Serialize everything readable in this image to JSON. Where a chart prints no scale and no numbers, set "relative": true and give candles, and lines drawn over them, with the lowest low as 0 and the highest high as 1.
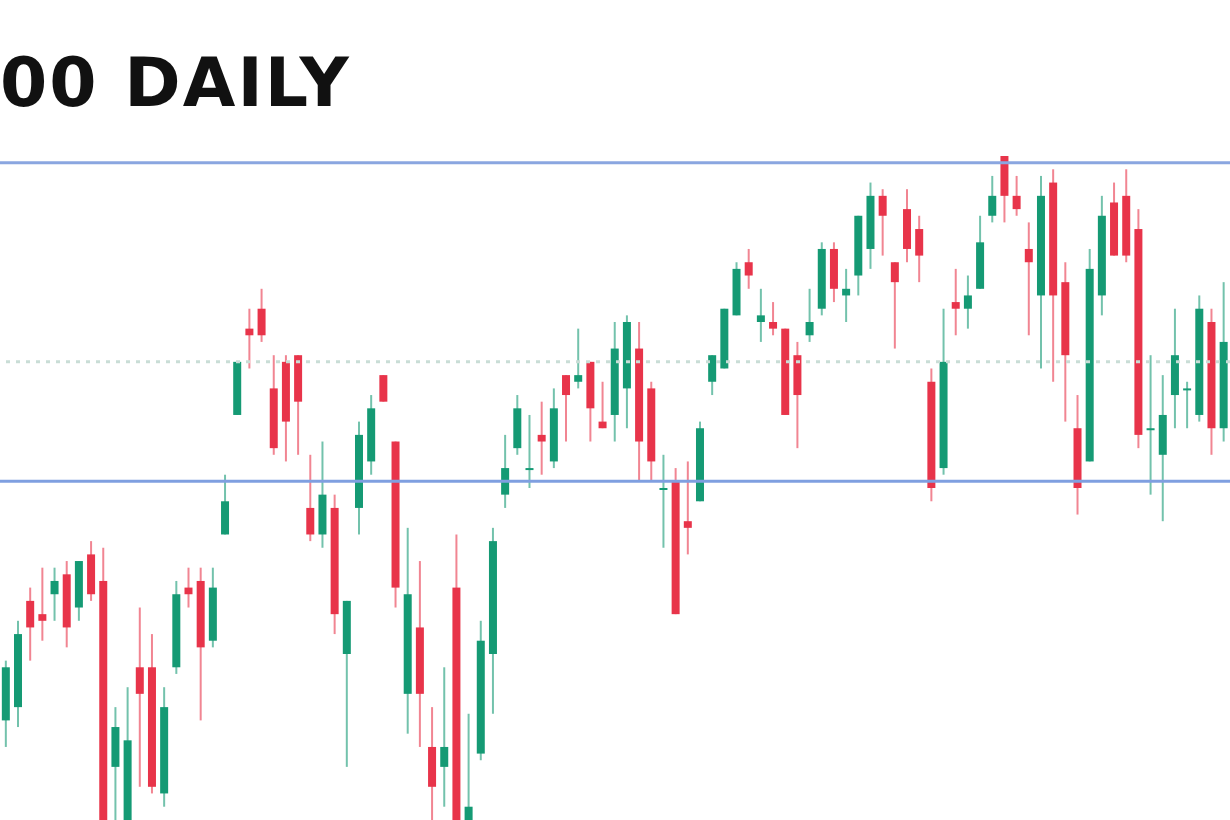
{
  "chart_data": {
    "type": "candlestick",
    "title": "00 DAILY",
    "relative": true,
    "categories": [
      null,
      null,
      null,
      null,
      null,
      null,
      null,
      null,
      null,
      null,
      null,
      null,
      null,
      null,
      null,
      null,
      null,
      null,
      null,
      null,
      null,
      null,
      null,
      null,
      null,
      null,
      null,
      null,
      null,
      null,
      null,
      null,
      null,
      null,
      null,
      null,
      null,
      null,
      null,
      null,
      null,
      null,
      null,
      null,
      null,
      null,
      null,
      null,
      null,
      null,
      null,
      null,
      null,
      null,
      null,
      null,
      null,
      null,
      null,
      null,
      null,
      null,
      null,
      null,
      null,
      null,
      null,
      null,
      null,
      null,
      null,
      null,
      null,
      null,
      null,
      null,
      null,
      null,
      null,
      null,
      null,
      null,
      null,
      null,
      null,
      null,
      null,
      null,
      null,
      null,
      null,
      null,
      null,
      null,
      null,
      null,
      null,
      null,
      null,
      null,
      null
    ],
    "ohlc": [
      [
        0.15,
        0.24,
        0.11,
        0.23
      ],
      [
        0.17,
        0.3,
        0.14,
        0.28
      ],
      [
        0.33,
        0.35,
        0.24,
        0.29
      ],
      [
        0.31,
        0.38,
        0.27,
        0.3
      ],
      [
        0.34,
        0.38,
        0.3,
        0.36
      ],
      [
        0.37,
        0.39,
        0.26,
        0.29
      ],
      [
        0.32,
        0.39,
        0.3,
        0.39
      ],
      [
        0.4,
        0.42,
        0.33,
        0.34
      ],
      [
        0.36,
        0.41,
        0,
        0
      ],
      [
        0.08,
        0.17,
        0,
        0.14
      ],
      [
        0,
        0.2,
        0,
        0.12
      ],
      [
        0.23,
        0.32,
        0.05,
        0.19
      ],
      [
        0.23,
        0.28,
        0.04,
        0.05
      ],
      [
        0.04,
        0.2,
        0.02,
        0.17
      ],
      [
        0.23,
        0.36,
        0.22,
        0.34
      ],
      [
        0.35,
        0.38,
        0.32,
        0.34
      ],
      [
        0.36,
        0.38,
        0.15,
        0.26
      ],
      [
        0.27,
        0.38,
        0.26,
        0.35
      ],
      [
        0.43,
        0.52,
        0.43,
        0.48
      ],
      [
        0.61,
        0.69,
        0.61,
        0.69
      ],
      [
        0.74,
        0.77,
        0.68,
        0.73
      ],
      [
        0.77,
        0.8,
        0.72,
        0.73
      ],
      [
        0.65,
        0.7,
        0.55,
        0.56
      ],
      [
        0.69,
        0.7,
        0.54,
        0.6
      ],
      [
        0.7,
        0.7,
        0.55,
        0.63
      ],
      [
        0.47,
        0.55,
        0.42,
        0.43
      ],
      [
        0.43,
        0.57,
        0.41,
        0.49
      ],
      [
        0.47,
        0.49,
        0.28,
        0.31
      ],
      [
        0.25,
        0.33,
        0.08,
        0.33
      ],
      [
        0.47,
        0.6,
        0.43,
        0.58
      ],
      [
        0.54,
        0.64,
        0.52,
        0.62
      ],
      [
        0.67,
        0.67,
        0.63,
        0.63
      ],
      [
        0.57,
        0.57,
        0.32,
        0.35
      ],
      [
        0.19,
        0.44,
        0.13,
        0.34
      ],
      [
        0.29,
        0.39,
        0.11,
        0.19
      ],
      [
        0.11,
        0.17,
        0,
        0.05
      ],
      [
        0.08,
        0.23,
        0.02,
        0.11
      ],
      [
        0.35,
        0.43,
        0,
        0
      ],
      [
        0,
        0.16,
        0,
        0.02
      ],
      [
        0.1,
        0.3,
        0.09,
        0.27
      ],
      [
        0.25,
        0.44,
        0.16,
        0.42
      ],
      [
        0.49,
        0.58,
        0.47,
        0.53
      ],
      [
        0.56,
        0.64,
        0.55,
        0.62
      ],
      [
        0.53,
        0.61,
        0.5,
        0.53
      ],
      [
        0.58,
        0.63,
        0.52,
        0.57
      ],
      [
        0.54,
        0.65,
        0.53,
        0.62
      ],
      [
        0.67,
        0.67,
        0.57,
        0.64
      ],
      [
        0.66,
        0.74,
        0.65,
        0.67
      ],
      [
        0.69,
        0.69,
        0.57,
        0.62
      ],
      [
        0.6,
        0.66,
        0.59,
        0.59
      ],
      [
        0.61,
        0.75,
        0.57,
        0.71
      ],
      [
        0.65,
        0.76,
        0.59,
        0.75
      ],
      [
        0.71,
        0.75,
        0.51,
        0.57
      ],
      [
        0.65,
        0.66,
        0.51,
        0.54
      ],
      [
        0.5,
        0.55,
        0.41,
        0.5
      ],
      [
        0.51,
        0.53,
        0.31,
        0.31
      ],
      [
        0.45,
        0.54,
        0.4,
        0.44
      ],
      [
        0.48,
        0.6,
        0.48,
        0.59
      ],
      [
        0.66,
        0.7,
        0.64,
        0.7
      ],
      [
        0.68,
        0.77,
        0.68,
        0.77
      ],
      [
        0.76,
        0.84,
        0.76,
        0.83
      ],
      [
        0.84,
        0.86,
        0.8,
        0.82
      ],
      [
        0.75,
        0.8,
        0.72,
        0.76
      ],
      [
        0.75,
        0.78,
        0.73,
        0.74
      ],
      [
        0.74,
        0.74,
        0.61,
        0.61
      ],
      [
        0.7,
        0.72,
        0.56,
        0.64
      ],
      [
        0.73,
        0.8,
        0.72,
        0.75
      ],
      [
        0.77,
        0.87,
        0.76,
        0.86
      ],
      [
        0.86,
        0.87,
        0.78,
        0.8
      ],
      [
        0.79,
        0.83,
        0.75,
        0.8
      ],
      [
        0.82,
        0.91,
        0.79,
        0.91
      ],
      [
        0.86,
        0.96,
        0.83,
        0.94
      ],
      [
        0.94,
        0.95,
        0.85,
        0.91
      ],
      [
        0.84,
        0.84,
        0.71,
        0.81
      ],
      [
        0.92,
        0.95,
        0.84,
        0.86
      ],
      [
        0.89,
        0.91,
        0.81,
        0.85
      ],
      [
        0.66,
        0.68,
        0.48,
        0.5
      ],
      [
        0.53,
        0.77,
        0.52,
        0.69
      ],
      [
        0.78,
        0.83,
        0.73,
        0.77
      ],
      [
        0.77,
        0.82,
        0.74,
        0.79
      ],
      [
        0.8,
        0.91,
        0.8,
        0.87
      ],
      [
        0.91,
        0.97,
        0.9,
        0.94
      ],
      [
        1.0,
        1.0,
        0.9,
        0.94
      ],
      [
        0.94,
        0.97,
        0.91,
        0.92
      ],
      [
        0.86,
        0.9,
        0.73,
        0.84
      ],
      [
        0.79,
        0.97,
        0.68,
        0.94
      ],
      [
        0.96,
        0.98,
        0.66,
        0.79
      ],
      [
        0.81,
        0.84,
        0.6,
        0.7
      ],
      [
        0.59,
        0.64,
        0.46,
        0.5
      ],
      [
        0.54,
        0.86,
        0.54,
        0.83
      ],
      [
        0.79,
        0.94,
        0.76,
        0.91
      ],
      [
        0.93,
        0.96,
        0.85,
        0.85
      ],
      [
        0.94,
        0.98,
        0.84,
        0.85
      ],
      [
        0.89,
        0.92,
        0.56,
        0.58
      ],
      [
        0.59,
        0.7,
        0.49,
        0.59
      ],
      [
        0.55,
        0.67,
        0.45,
        0.61
      ],
      [
        0.64,
        0.77,
        0.59,
        0.7
      ],
      [
        0.65,
        0.66,
        0.59,
        0.65
      ],
      [
        0.61,
        0.79,
        0.6,
        0.77
      ],
      [
        0.75,
        0.77,
        0.55,
        0.59
      ],
      [
        0.59,
        0.81,
        0.57,
        0.72
      ]
    ],
    "colors": [
      "#159a74",
      "#159a74",
      "#e8344a",
      "#e8344a",
      "#159a74",
      "#e8344a",
      "#159a74",
      "#e8344a",
      "#e8344a",
      "#159a74",
      "#159a74",
      "#e8344a",
      "#e8344a",
      "#159a74",
      "#159a74",
      "#e8344a",
      "#e8344a",
      "#159a74",
      "#159a74",
      "#159a74",
      "#e8344a",
      "#e8344a",
      "#e8344a",
      "#e8344a",
      "#e8344a",
      "#e8344a",
      "#159a74",
      "#e8344a",
      "#159a74",
      "#159a74",
      "#159a74",
      "#e8344a",
      "#e8344a",
      "#159a74",
      "#e8344a",
      "#e8344a",
      "#159a74",
      "#e8344a",
      "#159a74",
      "#159a74",
      "#159a74",
      "#159a74",
      "#159a74",
      "#159a74",
      "#e8344a",
      "#159a74",
      "#e8344a",
      "#159a74",
      "#e8344a",
      "#e8344a",
      "#159a74",
      "#159a74",
      "#e8344a",
      "#e8344a",
      "#159a74",
      "#e8344a",
      "#e8344a",
      "#159a74",
      "#159a74",
      "#159a74",
      "#159a74",
      "#e8344a",
      "#159a74",
      "#e8344a",
      "#e8344a",
      "#e8344a",
      "#159a74",
      "#159a74",
      "#e8344a",
      "#159a74",
      "#159a74",
      "#159a74",
      "#e8344a",
      "#e8344a",
      "#e8344a",
      "#e8344a",
      "#e8344a",
      "#159a74",
      "#e8344a",
      "#159a74",
      "#159a74",
      "#159a74",
      "#e8344a",
      "#e8344a",
      "#e8344a",
      "#159a74",
      "#e8344a",
      "#e8344a",
      "#e8344a",
      "#159a74",
      "#159a74",
      "#e8344a",
      "#e8344a",
      "#e8344a",
      "#159a74",
      "#159a74",
      "#159a74",
      "#159a74",
      "#159a74",
      "#e8344a",
      "#159a74"
    ],
    "ref_lines": [
      {
        "axis": "y",
        "value": 0.99,
        "color": "#8aa6e0",
        "line_style": "solid"
      },
      {
        "axis": "y",
        "value": 0.69,
        "color": "#c9ddd6",
        "line_style": "dotted"
      },
      {
        "axis": "y",
        "value": 0.51,
        "color": "#7f9fe0",
        "line_style": "solid"
      }
    ]
  }
}
